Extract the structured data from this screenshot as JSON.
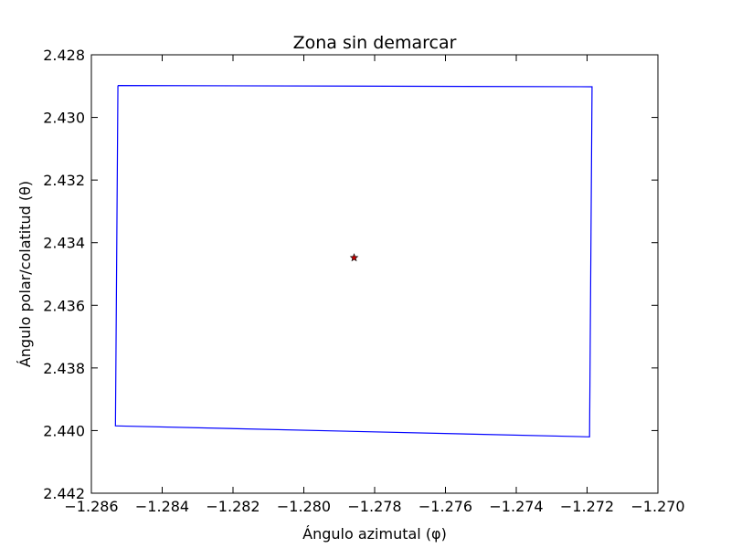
{
  "chart_data": {
    "type": "line",
    "title": "Zona sin demarcar",
    "xlabel": "Ángulo azimutal (φ)",
    "ylabel": "Ángulo polar/colatitud (θ)",
    "xlim": [
      -1.286,
      -1.27
    ],
    "ylim": [
      2.442,
      2.428
    ],
    "y_inverted": true,
    "grid": false,
    "x_ticks": [
      -1.286,
      -1.284,
      -1.282,
      -1.28,
      -1.278,
      -1.276,
      -1.274,
      -1.272,
      -1.27
    ],
    "y_ticks": [
      2.428,
      2.43,
      2.432,
      2.434,
      2.436,
      2.438,
      2.44,
      2.442
    ],
    "x_tick_labels": [
      "−1.286",
      "−1.284",
      "−1.282",
      "−1.280",
      "−1.278",
      "−1.276",
      "−1.274",
      "−1.272",
      "−1.270"
    ],
    "y_tick_labels": [
      "2.428",
      "2.430",
      "2.432",
      "2.434",
      "2.436",
      "2.438",
      "2.440",
      "2.442"
    ],
    "series": [
      {
        "type": "line",
        "color": "#0000ff",
        "points": [
          [
            -1.28525,
            2.42898
          ],
          [
            -1.27186,
            2.42902
          ],
          [
            -1.27193,
            2.4402
          ],
          [
            -1.28532,
            2.43985
          ],
          [
            -1.28525,
            2.42898
          ]
        ]
      },
      {
        "type": "scatter",
        "marker": "star",
        "color": "#c00000",
        "edge_color": "#000000",
        "points": [
          [
            -1.27858,
            2.43448
          ]
        ]
      }
    ]
  }
}
